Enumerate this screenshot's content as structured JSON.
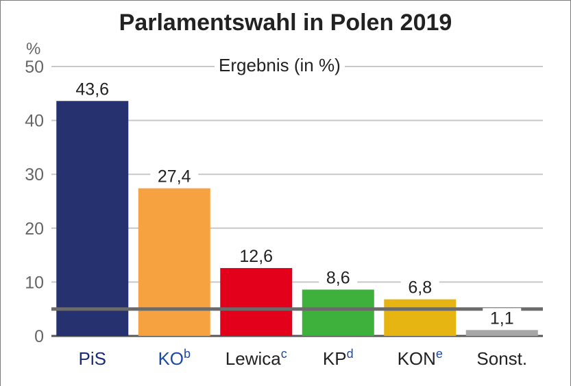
{
  "chart_data": {
    "type": "bar",
    "title": "Parlamentswahl in Polen 2019",
    "subtitle": "Ergebnis (in %)",
    "unit": "%",
    "categories": [
      {
        "label": "PiS",
        "sup": "",
        "color": "#1d2a78"
      },
      {
        "label": "KO",
        "sup": "b",
        "color": "#1e4aa0"
      },
      {
        "label": "Lewica",
        "sup": "c",
        "color": "#222222"
      },
      {
        "label": "KP",
        "sup": "d",
        "color": "#222222"
      },
      {
        "label": "KON",
        "sup": "e",
        "color": "#222222"
      },
      {
        "label": "Sonst.",
        "sup": "",
        "color": "#222222"
      }
    ],
    "sup_color": "#1e4aa0",
    "values": [
      43.6,
      27.4,
      12.6,
      8.6,
      6.8,
      1.1
    ],
    "value_labels": [
      "43,6",
      "27,4",
      "12,6",
      "8,6",
      "6,8",
      "1,1"
    ],
    "bar_colors": [
      "#26326f",
      "#f7a240",
      "#e2001a",
      "#3eb13c",
      "#e6b511",
      "#a6a6a6"
    ],
    "yticks": [
      0,
      10,
      20,
      30,
      40,
      50
    ],
    "ylim": [
      0,
      50
    ],
    "threshold": 5,
    "threshold_color": "#6b6b6b",
    "grid": true
  }
}
